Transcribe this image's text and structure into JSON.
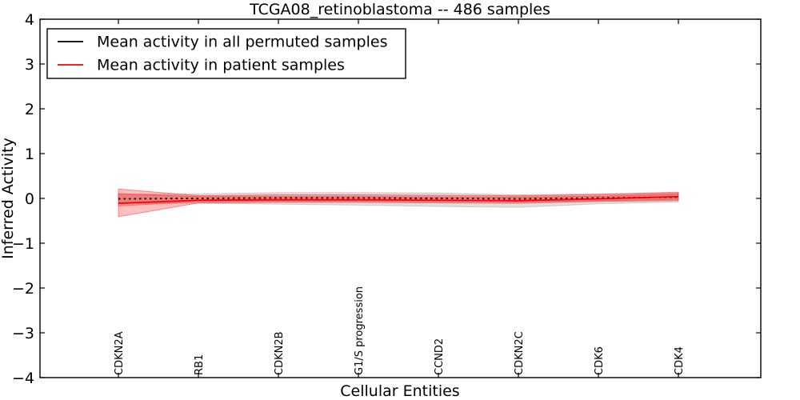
{
  "figure": {
    "title": "TCGA08_retinoblastoma -- 486 samples"
  },
  "chart_data": {
    "type": "line",
    "title": "TCGA08_retinoblastoma -- 486 samples",
    "xlabel": "Cellular Entities",
    "ylabel": "Inferred Activity",
    "ylim": [
      -4,
      4
    ],
    "yticks": [
      4,
      3,
      2,
      1,
      0,
      -1,
      -2,
      -3,
      -4
    ],
    "grid": false,
    "legend_position": "upper left",
    "categories": [
      "CDKN2A",
      "RB1",
      "CDKN2B",
      "G1/S progression",
      "CCND2",
      "CDKN2C",
      "CDK6",
      "CDK4"
    ],
    "legend": [
      {
        "label": "Mean activity in all permuted samples",
        "color": "#000000"
      },
      {
        "label": "Mean activity in patient samples",
        "color": "#ff0000"
      }
    ],
    "series": [
      {
        "name": "Mean activity in all permuted samples",
        "color": "#000000",
        "linestyle": "dashed",
        "values": [
          -0.01,
          0.0,
          0.01,
          0.01,
          0.0,
          -0.01,
          0.01,
          0.03
        ]
      },
      {
        "name": "Mean activity in patient samples",
        "color": "#ff0000",
        "linestyle": "solid",
        "values": [
          -0.11,
          -0.04,
          -0.03,
          -0.03,
          -0.04,
          -0.05,
          -0.01,
          0.04
        ]
      }
    ],
    "bands": [
      {
        "name": "permuted-std-band",
        "color": "#808080",
        "fill_opacity": 0.25,
        "edge_opacity": 0.3,
        "top": [
          0.09,
          0.1,
          0.13,
          0.13,
          0.12,
          0.08,
          0.1,
          0.12
        ],
        "bottom": [
          -0.11,
          -0.11,
          -0.13,
          -0.15,
          -0.18,
          -0.2,
          -0.12,
          -0.08
        ]
      },
      {
        "name": "patient-std-band-outer",
        "color": "#ff0000",
        "fill_opacity": 0.25,
        "edge_opacity": 0.4,
        "top": [
          0.21,
          0.06,
          0.08,
          0.08,
          0.07,
          0.06,
          0.09,
          0.14
        ],
        "bottom": [
          -0.41,
          -0.1,
          -0.09,
          -0.09,
          -0.1,
          -0.11,
          -0.07,
          -0.05
        ]
      },
      {
        "name": "patient-std-band-inner",
        "color": "#ff0000",
        "fill_opacity": 0.25,
        "edge_opacity": 0.35,
        "top": [
          0.11,
          0.04,
          0.04,
          0.04,
          0.03,
          0.03,
          0.05,
          0.1
        ],
        "bottom": [
          -0.17,
          -0.07,
          -0.06,
          -0.06,
          -0.07,
          -0.08,
          -0.05,
          -0.02
        ]
      }
    ]
  }
}
